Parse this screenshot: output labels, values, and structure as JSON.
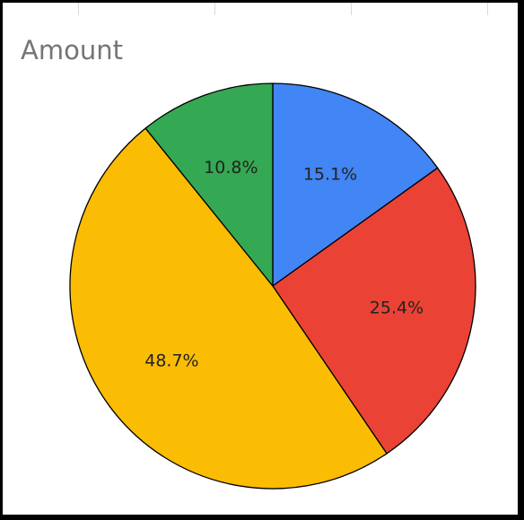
{
  "chart_data": {
    "type": "pie",
    "title": "Amount",
    "slices": [
      {
        "value": 15.1,
        "label": "15.1%",
        "color": "#4285F4"
      },
      {
        "value": 25.4,
        "label": "25.4%",
        "color": "#EA4335"
      },
      {
        "value": 48.7,
        "label": "48.7%",
        "color": "#FBBC04"
      },
      {
        "value": 10.8,
        "label": "10.8%",
        "color": "#34A853"
      }
    ]
  }
}
